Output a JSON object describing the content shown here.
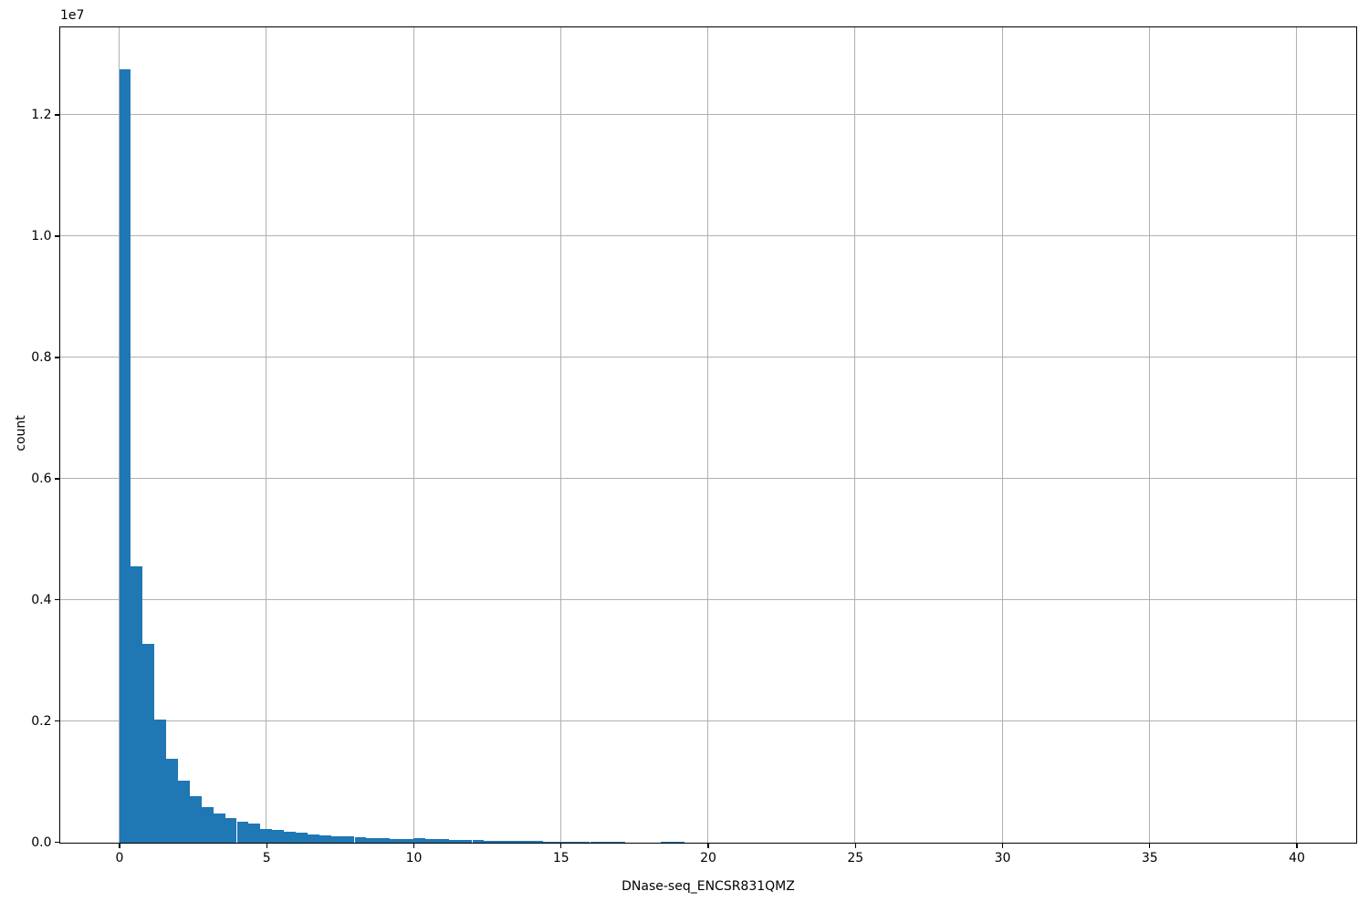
{
  "chart_data": {
    "type": "bar",
    "subtype": "histogram",
    "title": "",
    "xlabel": "DNase-seq_ENCSR831QMZ",
    "ylabel": "count",
    "offset_text": "1e7",
    "grid": true,
    "legend": false,
    "bar_color": "#1f77b4",
    "grid_color": "#b0b0b0",
    "background_color": "#ffffff",
    "xlim": [
      -2.0,
      42.0
    ],
    "ylim": [
      0,
      13440000
    ],
    "bin_width": 0.4,
    "x_ticks": [
      0,
      5,
      10,
      15,
      20,
      25,
      30,
      35,
      40
    ],
    "x_tick_labels": [
      "0",
      "5",
      "10",
      "15",
      "20",
      "25",
      "30",
      "35",
      "40"
    ],
    "y_ticks": [
      0,
      2000000,
      4000000,
      6000000,
      8000000,
      10000000,
      12000000
    ],
    "y_tick_labels": [
      "0.0",
      "0.2",
      "0.4",
      "0.6",
      "0.8",
      "1.0",
      "1.2"
    ],
    "bin_starts": [
      0.0,
      0.4,
      0.8,
      1.2,
      1.6,
      2.0,
      2.4,
      2.8,
      3.2,
      3.6,
      4.0,
      4.4,
      4.8,
      5.2,
      5.6,
      6.0,
      6.4,
      6.8,
      7.2,
      7.6,
      8.0,
      8.4,
      8.8,
      9.2,
      9.6,
      10.0,
      10.4,
      10.8,
      11.2,
      11.6,
      12.0,
      12.4,
      12.8,
      13.2,
      13.6,
      14.0,
      14.4,
      14.8,
      15.2,
      15.6,
      16.0,
      16.4,
      16.8,
      17.2,
      17.6,
      18.0,
      18.4,
      18.8
    ],
    "counts": [
      12770000,
      4560000,
      3280000,
      2030000,
      1390000,
      1020000,
      770000,
      590000,
      480000,
      410000,
      350000,
      310000,
      230000,
      205000,
      180000,
      160000,
      140000,
      125000,
      110000,
      100000,
      90000,
      80000,
      75000,
      66000,
      66000,
      75000,
      66000,
      56000,
      50000,
      45000,
      40000,
      36000,
      32000,
      28000,
      26000,
      24000,
      22000,
      20000,
      18000,
      16000,
      16000,
      9000,
      8000,
      7000,
      6000,
      0,
      20000,
      16000
    ]
  }
}
